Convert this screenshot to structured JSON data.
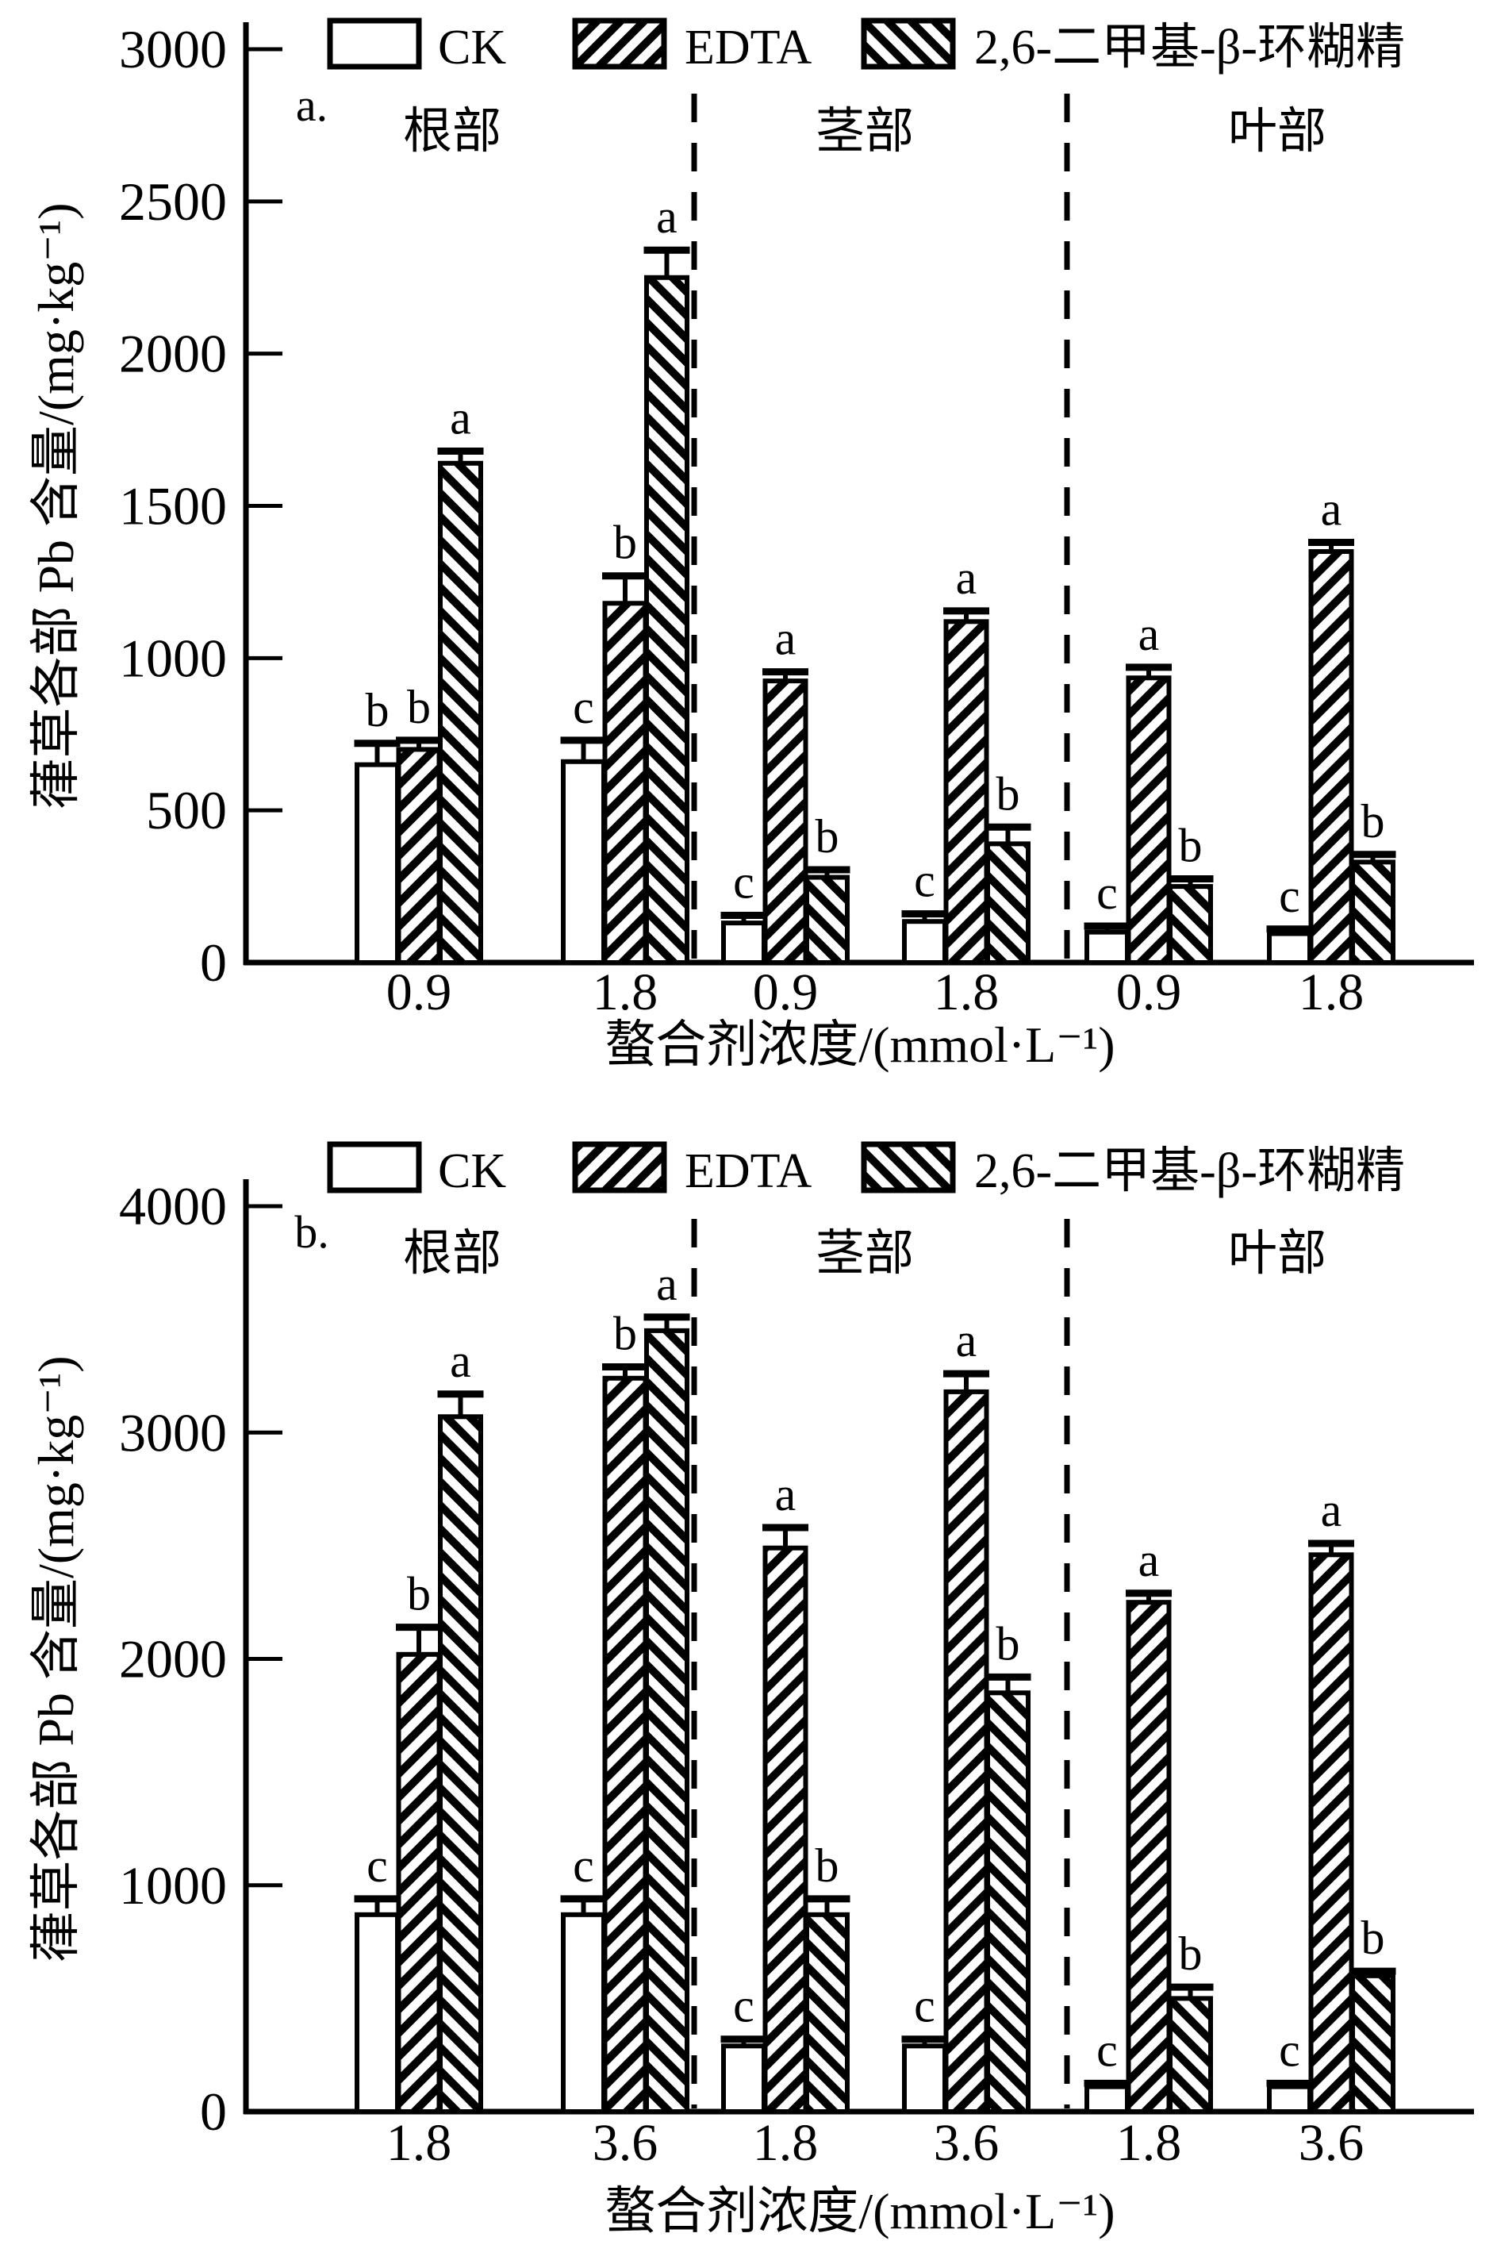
{
  "figure_title": "",
  "legend": {
    "items": [
      {
        "label": "CK",
        "hatch": "none"
      },
      {
        "label": "EDTA",
        "hatch": "forward-diagonal"
      },
      {
        "label": "2,6-二甲基-β-环糊精",
        "hatch": "backward-diagonal"
      }
    ]
  },
  "colors": {
    "ink": "#000000",
    "background": "#ffffff"
  },
  "chart_data": [
    {
      "type": "bar",
      "panel_letter": "a.",
      "ylabel": "葎草各部 Pb 含量/(mg·kg⁻¹)",
      "xlabel": "螯合剂浓度/(mmol·L⁻¹)",
      "ylim": [
        0,
        3000
      ],
      "yticks": [
        "0",
        "500",
        "1000",
        "1500",
        "2000",
        "2500",
        "3000"
      ],
      "grid": "off",
      "legend_position": "top",
      "sections": [
        "根部",
        "茎部",
        "叶部"
      ],
      "categories": [
        "0.9",
        "1.8",
        "0.9",
        "1.8",
        "0.9",
        "1.8"
      ],
      "series": [
        {
          "name": "CK",
          "hatch": "none",
          "values": [
            650,
            660,
            130,
            135,
            100,
            95
          ],
          "errors": [
            70,
            70,
            25,
            25,
            20,
            15
          ],
          "letters": [
            "b",
            "c",
            "c",
            "c",
            "c",
            "c"
          ]
        },
        {
          "name": "EDTA",
          "hatch": "forward-diagonal",
          "values": [
            700,
            1180,
            925,
            1120,
            935,
            1350
          ],
          "errors": [
            30,
            90,
            30,
            35,
            35,
            30
          ],
          "letters": [
            "b",
            "b",
            "a",
            "a",
            "a",
            "a"
          ]
        },
        {
          "name": "2,6-二甲基-β-环糊精",
          "hatch": "backward-diagonal",
          "values": [
            1640,
            2250,
            280,
            390,
            250,
            330
          ],
          "errors": [
            40,
            90,
            25,
            55,
            25,
            25
          ],
          "letters": [
            "a",
            "a",
            "b",
            "b",
            "b",
            "b"
          ]
        }
      ]
    },
    {
      "type": "bar",
      "panel_letter": "b.",
      "ylabel": "葎草各部 Pb 含量/(mg·kg⁻¹)",
      "xlabel": "螯合剂浓度/(mmol·L⁻¹)",
      "ylim": [
        0,
        4000
      ],
      "yticks": [
        "0",
        "1000",
        "2000",
        "3000",
        "4000"
      ],
      "grid": "off",
      "legend_position": "top",
      "sections": [
        "根部",
        "茎部",
        "叶部"
      ],
      "categories": [
        "1.8",
        "3.6",
        "1.8",
        "3.6",
        "1.8",
        "3.6"
      ],
      "series": [
        {
          "name": "CK",
          "hatch": "none",
          "values": [
            870,
            870,
            290,
            290,
            110,
            110
          ],
          "errors": [
            70,
            70,
            30,
            30,
            15,
            15
          ],
          "letters": [
            "c",
            "c",
            "c",
            "c",
            "c",
            "c"
          ]
        },
        {
          "name": "EDTA",
          "hatch": "forward-diagonal",
          "values": [
            2020,
            3240,
            2490,
            3180,
            2250,
            2460
          ],
          "errors": [
            120,
            50,
            90,
            80,
            40,
            50
          ],
          "letters": [
            "b",
            "b",
            "a",
            "a",
            "a",
            "a"
          ]
        },
        {
          "name": "2,6-二甲基-β-环糊精",
          "hatch": "backward-diagonal",
          "values": [
            3070,
            3450,
            870,
            1850,
            500,
            600
          ],
          "errors": [
            100,
            60,
            70,
            70,
            50,
            20
          ],
          "letters": [
            "a",
            "a",
            "b",
            "b",
            "b",
            "b"
          ]
        }
      ]
    }
  ]
}
